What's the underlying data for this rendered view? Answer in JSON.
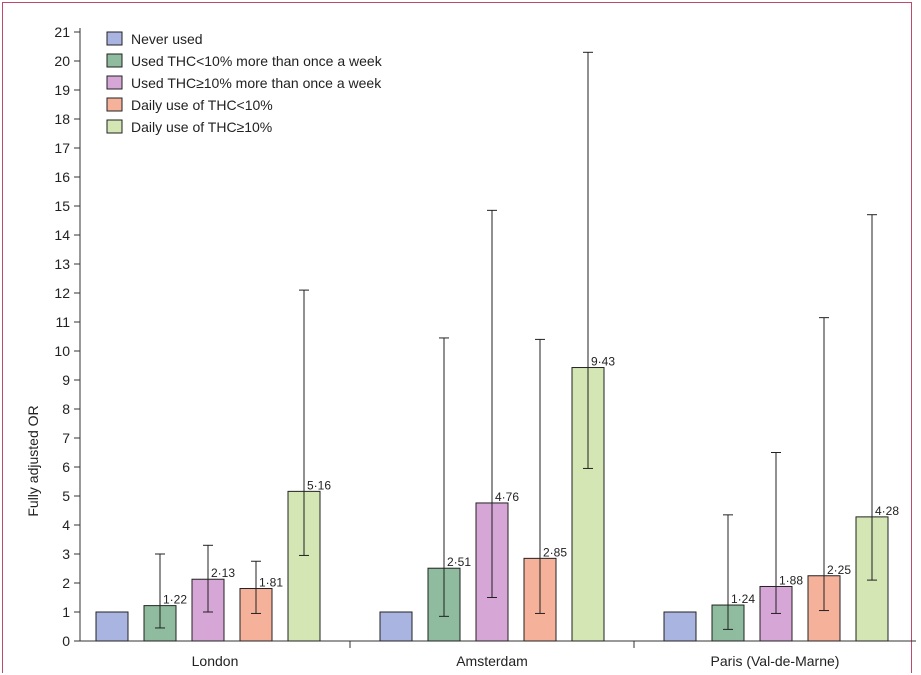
{
  "chart_data": {
    "type": "bar",
    "title": "",
    "xlabel": "",
    "ylabel": "Fully adjusted OR",
    "ylim": [
      0,
      21
    ],
    "yticks": [
      0,
      1,
      2,
      3,
      4,
      5,
      6,
      7,
      8,
      9,
      10,
      11,
      12,
      13,
      14,
      15,
      16,
      17,
      18,
      19,
      20,
      21
    ],
    "grid": false,
    "legend_position": "top-left",
    "categories": [
      "London",
      "Amsterdam",
      "Paris (Val-de-Marne)"
    ],
    "series": [
      {
        "name": "Never used",
        "color": "#aab4e0",
        "values": [
          1,
          1,
          1
        ],
        "labels": [
          "",
          "",
          ""
        ],
        "error_low": [
          null,
          null,
          null
        ],
        "error_high": [
          null,
          null,
          null
        ]
      },
      {
        "name": "Used THC<10% more than once a week",
        "color": "#8fbc9e",
        "values": [
          1.22,
          2.51,
          1.24
        ],
        "labels": [
          "1·22",
          "2·51",
          "1·24"
        ],
        "error_low": [
          0.45,
          0.85,
          0.4
        ],
        "error_high": [
          3.0,
          10.45,
          4.35
        ]
      },
      {
        "name": "Used THC≥10% more than once a week",
        "color": "#d6a6d6",
        "values": [
          2.13,
          4.76,
          1.88
        ],
        "labels": [
          "2·13",
          "4·76",
          "1·88"
        ],
        "error_low": [
          1.0,
          1.5,
          0.95
        ],
        "error_high": [
          3.3,
          14.85,
          6.5
        ]
      },
      {
        "name": "Daily use of THC<10%",
        "color": "#f5b19a",
        "values": [
          1.81,
          2.85,
          2.25
        ],
        "labels": [
          "1·81",
          "2·85",
          "2·25"
        ],
        "error_low": [
          0.95,
          0.95,
          1.05
        ],
        "error_high": [
          2.75,
          10.4,
          11.15
        ]
      },
      {
        "name": "Daily use of THC≥10%",
        "color": "#d3e6b3",
        "values": [
          5.16,
          9.43,
          4.28
        ],
        "labels": [
          "5·16",
          "9·43",
          "4·28"
        ],
        "error_low": [
          2.95,
          5.95,
          2.1
        ],
        "error_high": [
          12.1,
          20.3,
          14.7
        ]
      }
    ]
  }
}
